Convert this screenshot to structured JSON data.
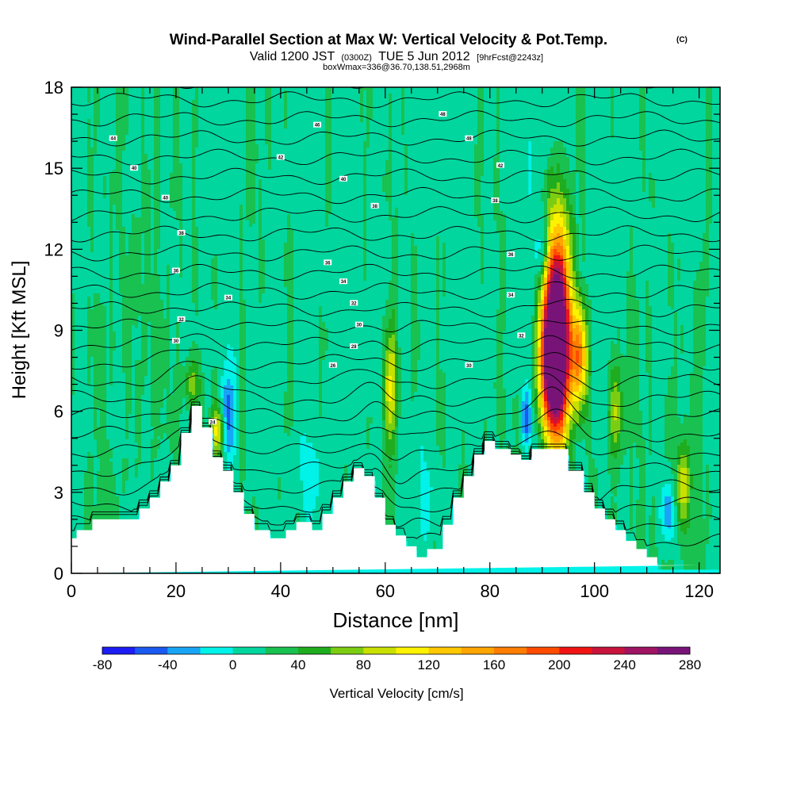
{
  "header": {
    "title": "Wind-Parallel Section at Max W: Vertical Velocity & Pot.Temp.",
    "title_mark": "(C)",
    "valid_prefix": "Valid 1200 JST",
    "valid_utc": "(0300Z)",
    "valid_date": "TUE 5 Jun 2012",
    "forecast": "[9hrFcst@2243z]",
    "wmax": "boxWmax=336@36.70,138.51,2968m"
  },
  "chart_data": {
    "type": "heatmap",
    "title": "Wind-Parallel Section at Max W: Vertical Velocity & Pot.Temp.",
    "xlabel": "Distance [nm]",
    "ylabel": "Height [Kft MSL]",
    "xlim": [
      0,
      124
    ],
    "ylim": [
      0,
      18
    ],
    "x_ticks": [
      "0",
      "20",
      "40",
      "60",
      "80",
      "100",
      "120"
    ],
    "y_ticks": [
      "0",
      "3",
      "6",
      "9",
      "12",
      "15",
      "18"
    ],
    "colorbar": {
      "label": "Vertical Velocity [cm/s]",
      "tick_labels": [
        "-80",
        "-40",
        "0",
        "40",
        "80",
        "120",
        "160",
        "200",
        "240",
        "280"
      ],
      "levels": [
        -80,
        -60,
        -40,
        -20,
        0,
        20,
        40,
        60,
        80,
        100,
        120,
        140,
        160,
        180,
        200,
        220,
        240,
        260,
        280
      ],
      "colors": [
        "#1c1cf4",
        "#1a5af0",
        "#19a5f5",
        "#00f2e8",
        "#00d69e",
        "#19c150",
        "#1fad1f",
        "#7ccd12",
        "#c9e000",
        "#fff200",
        "#ffc800",
        "#ffa500",
        "#ff7d00",
        "#ff4b00",
        "#f01414",
        "#c8143c",
        "#a01464",
        "#781478"
      ]
    },
    "terrain": {
      "x": [
        0,
        1,
        1,
        4,
        4,
        13,
        13,
        15,
        15,
        17,
        17,
        19,
        19,
        21,
        21,
        23,
        23,
        25,
        25,
        27,
        27,
        29,
        29,
        31,
        31,
        33,
        33,
        35,
        35,
        38,
        38,
        41,
        41,
        43,
        43,
        46,
        46,
        48,
        48,
        50,
        50,
        52,
        52,
        54,
        54,
        56,
        56,
        58,
        58,
        60,
        60,
        62,
        62,
        64,
        64,
        66,
        66,
        68,
        68,
        71,
        71,
        73,
        73,
        75,
        75,
        77,
        77,
        79,
        79,
        81,
        81,
        84,
        84,
        86,
        86,
        88,
        88,
        90,
        90,
        92,
        92,
        95,
        95,
        98,
        98,
        100,
        100,
        102,
        102,
        104,
        104,
        106,
        106,
        108,
        108,
        110,
        110,
        112,
        112,
        114,
        114,
        118,
        118,
        120,
        120,
        124
      ],
      "y": [
        1.3,
        1.3,
        1.6,
        1.6,
        2.0,
        2.0,
        2.4,
        2.4,
        2.8,
        2.8,
        3.4,
        3.4,
        4.0,
        4.0,
        5.2,
        5.2,
        6.2,
        6.2,
        5.4,
        5.4,
        4.3,
        4.3,
        3.8,
        3.8,
        3.0,
        3.0,
        2.2,
        2.2,
        1.6,
        1.6,
        1.3,
        1.3,
        1.6,
        1.6,
        1.9,
        1.9,
        1.6,
        1.6,
        2.2,
        2.2,
        2.8,
        2.8,
        3.4,
        3.4,
        3.9,
        3.9,
        3.6,
        3.6,
        2.8,
        2.8,
        1.8,
        1.8,
        1.4,
        1.4,
        1.0,
        1.0,
        0.6,
        0.6,
        0.9,
        0.9,
        1.8,
        1.8,
        2.8,
        2.8,
        3.6,
        3.6,
        4.4,
        4.4,
        4.9,
        4.9,
        4.6,
        4.6,
        4.4,
        4.4,
        4.2,
        4.2,
        4.6,
        4.6,
        4.6,
        4.6,
        4.6,
        4.6,
        3.8,
        3.8,
        3.0,
        3.0,
        2.4,
        2.4,
        2.0,
        2.0,
        1.6,
        1.6,
        1.2,
        1.2,
        0.9,
        0.9,
        0.6,
        0.6,
        0.3,
        0.3,
        0.3,
        0.3,
        0.3,
        0.3,
        0.3
      ]
    },
    "updraft_cores": [
      {
        "x": 93,
        "ybot": 4.8,
        "ytop": 13.5,
        "halfwidth": 2.8,
        "peak": 280
      },
      {
        "x": 92,
        "ybot": 5.2,
        "ytop": 10.5,
        "halfwidth": 2.6,
        "peak": 230
      },
      {
        "x": 97,
        "ybot": 6.0,
        "ytop": 10.0,
        "halfwidth": 1.8,
        "peak": 140
      },
      {
        "x": 61,
        "ybot": 4.4,
        "ytop": 9.4,
        "halfwidth": 1.4,
        "peak": 90
      },
      {
        "x": 28,
        "ybot": 4.3,
        "ytop": 6.2,
        "halfwidth": 1.4,
        "peak": 80
      },
      {
        "x": 23,
        "ybot": 6.0,
        "ytop": 8.0,
        "halfwidth": 1.8,
        "peak": 50
      },
      {
        "x": 117,
        "ybot": 1.5,
        "ytop": 5.0,
        "halfwidth": 1.5,
        "peak": 80
      },
      {
        "x": 104,
        "ybot": 4.0,
        "ytop": 8.0,
        "halfwidth": 1.5,
        "peak": 60
      }
    ],
    "downdraft_cores": [
      {
        "x": 30,
        "ybot": 4.0,
        "ytop": 7.5,
        "halfwidth": 1.4,
        "peak": -65
      },
      {
        "x": 87,
        "ybot": 4.6,
        "ytop": 6.8,
        "halfwidth": 1.0,
        "peak": -70
      },
      {
        "x": 90,
        "ybot": 10.5,
        "ytop": 13.5,
        "halfwidth": 1.2,
        "peak": -55
      },
      {
        "x": 114,
        "ybot": 1.0,
        "ytop": 3.5,
        "halfwidth": 1.4,
        "peak": -60
      },
      {
        "x": 45,
        "ybot": 1.7,
        "ytop": 5.5,
        "halfwidth": 2.5,
        "peak": -30
      },
      {
        "x": 68,
        "ybot": 0.8,
        "ytop": 4.0,
        "halfwidth": 1.5,
        "peak": -25
      }
    ],
    "theta_contours": {
      "levels": [
        300,
        302,
        304,
        306,
        308,
        310,
        312,
        314,
        316,
        318,
        320,
        322,
        324,
        326,
        328,
        330,
        332,
        334,
        336,
        338,
        340,
        342,
        344,
        346,
        348,
        350
      ],
      "labeled": [
        {
          "text": "44",
          "x": 8,
          "y": 16.1
        },
        {
          "text": "40",
          "x": 12,
          "y": 15.0
        },
        {
          "text": "40",
          "x": 18,
          "y": 13.9
        },
        {
          "text": "38",
          "x": 21,
          "y": 12.6
        },
        {
          "text": "36",
          "x": 20,
          "y": 11.2
        },
        {
          "text": "34",
          "x": 30,
          "y": 10.2
        },
        {
          "text": "32",
          "x": 21,
          "y": 9.4
        },
        {
          "text": "30",
          "x": 20,
          "y": 8.6
        },
        {
          "text": "24",
          "x": 27,
          "y": 5.6
        },
        {
          "text": "42",
          "x": 40,
          "y": 15.4
        },
        {
          "text": "46",
          "x": 47,
          "y": 16.6
        },
        {
          "text": "40",
          "x": 52,
          "y": 14.6
        },
        {
          "text": "38",
          "x": 58,
          "y": 13.6
        },
        {
          "text": "36",
          "x": 49,
          "y": 11.5
        },
        {
          "text": "34",
          "x": 52,
          "y": 10.8
        },
        {
          "text": "32",
          "x": 54,
          "y": 10.0
        },
        {
          "text": "30",
          "x": 55,
          "y": 9.2
        },
        {
          "text": "28",
          "x": 54,
          "y": 8.4
        },
        {
          "text": "26",
          "x": 50,
          "y": 7.7
        },
        {
          "text": "48",
          "x": 71,
          "y": 17.0
        },
        {
          "text": "48",
          "x": 76,
          "y": 16.1
        },
        {
          "text": "42",
          "x": 82,
          "y": 15.1
        },
        {
          "text": "38",
          "x": 81,
          "y": 13.8
        },
        {
          "text": "36",
          "x": 84,
          "y": 11.8
        },
        {
          "text": "34",
          "x": 84,
          "y": 10.3
        },
        {
          "text": "32",
          "x": 86,
          "y": 8.8
        },
        {
          "text": "30",
          "x": 76,
          "y": 7.7
        }
      ]
    },
    "grid": false,
    "legend": "bottom"
  }
}
